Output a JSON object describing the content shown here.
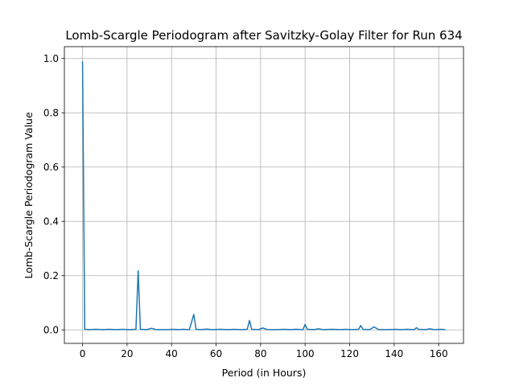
{
  "chart_data": {
    "type": "line",
    "title": "Lomb-Scargle Periodogram after Savitzky-Golay Filter for Run 634",
    "xlabel": "Period (in Hours)",
    "ylabel": "Lomb-Scargle Periodogram Value",
    "xlim": [
      -8.15,
      171.15
    ],
    "ylim": [
      -0.0497,
      1.0437
    ],
    "xticks": [
      0,
      20,
      40,
      60,
      80,
      100,
      120,
      140,
      160
    ],
    "xtick_labels": [
      "0",
      "20",
      "40",
      "60",
      "80",
      "100",
      "120",
      "140",
      "160"
    ],
    "yticks": [
      0.0,
      0.2,
      0.4,
      0.6,
      0.8,
      1.0
    ],
    "ytick_labels": [
      "0.0",
      "0.2",
      "0.4",
      "0.6",
      "0.8",
      "1.0"
    ],
    "grid": true,
    "line_color": "#1f77b4",
    "series": [
      {
        "x": [
          0,
          1,
          3,
          6,
          9,
          12,
          15,
          18,
          21,
          24,
          25,
          26,
          29,
          31,
          33,
          37,
          41,
          43,
          45,
          48,
          50,
          51,
          53,
          56,
          58,
          62,
          66,
          68,
          71,
          74,
          75,
          76,
          79,
          81,
          83,
          87,
          91,
          93,
          96,
          99,
          100,
          101,
          104,
          106,
          108,
          112,
          116,
          118,
          121,
          124,
          125,
          126,
          129,
          131,
          133,
          137,
          141,
          143,
          146,
          149,
          150,
          151,
          154,
          156,
          158,
          161,
          163
        ],
        "y": [
          0.99,
          0.002,
          0.001,
          0.002,
          0.001,
          0.002,
          0.001,
          0.002,
          0.001,
          0.002,
          0.218,
          0.002,
          0.001,
          0.006,
          0.001,
          0.001,
          0.002,
          0.001,
          0.002,
          0.001,
          0.057,
          0.002,
          0.001,
          0.003,
          0.001,
          0.002,
          0.001,
          0.002,
          0.001,
          0.002,
          0.035,
          0.002,
          0.001,
          0.007,
          0.001,
          0.001,
          0.002,
          0.001,
          0.002,
          0.001,
          0.02,
          0.002,
          0.001,
          0.004,
          0.001,
          0.002,
          0.001,
          0.002,
          0.001,
          0.002,
          0.016,
          0.002,
          0.001,
          0.011,
          0.001,
          0.001,
          0.002,
          0.001,
          0.002,
          0.001,
          0.008,
          0.002,
          0.001,
          0.004,
          0.001,
          0.002,
          0.001
        ]
      }
    ]
  }
}
